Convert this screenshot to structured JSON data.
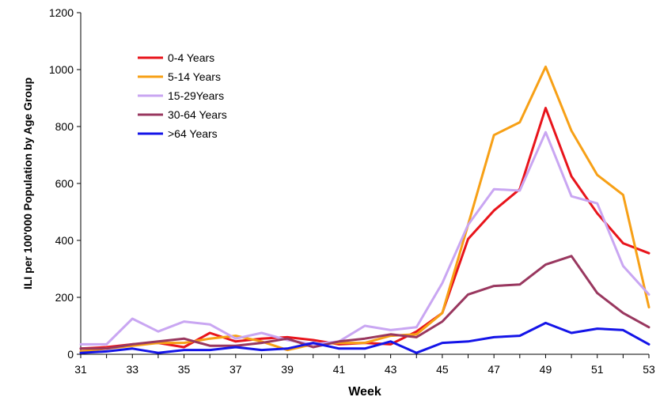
{
  "chart_data": {
    "type": "line",
    "xlabel": "Week",
    "ylabel": "ILI per 100'000 Population by Age Group",
    "xlim": [
      31,
      53
    ],
    "ylim": [
      0,
      1200
    ],
    "x": [
      31,
      32,
      33,
      34,
      35,
      36,
      37,
      38,
      39,
      40,
      41,
      42,
      43,
      44,
      45,
      46,
      47,
      48,
      49,
      50,
      51,
      52,
      53
    ],
    "x_ticks": [
      "31",
      "33",
      "35",
      "37",
      "39",
      "41",
      "43",
      "45",
      "47",
      "49",
      "51",
      "53"
    ],
    "y_ticks": [
      "0",
      "200",
      "400",
      "600",
      "800",
      "1000",
      "1200"
    ],
    "grid": false,
    "legend": "top-left",
    "series": [
      {
        "name": "0-4 Years",
        "color": "#e8141b",
        "values": [
          20,
          25,
          35,
          40,
          25,
          75,
          45,
          55,
          60,
          50,
          35,
          40,
          35,
          80,
          145,
          405,
          505,
          580,
          865,
          625,
          495,
          390,
          355
        ]
      },
      {
        "name": "5-14 Years",
        "color": "#f7a016",
        "values": [
          10,
          20,
          30,
          40,
          40,
          55,
          65,
          45,
          15,
          35,
          40,
          40,
          65,
          70,
          145,
          455,
          770,
          815,
          1010,
          785,
          630,
          560,
          165
        ]
      },
      {
        "name": "15-29Years",
        "color": "#c9a6f2",
        "values": [
          35,
          35,
          125,
          80,
          115,
          105,
          55,
          75,
          50,
          35,
          45,
          100,
          85,
          95,
          250,
          455,
          580,
          575,
          780,
          555,
          530,
          310,
          210
        ]
      },
      {
        "name": "30-64 Years",
        "color": "#99375f",
        "values": [
          20,
          20,
          35,
          45,
          55,
          30,
          30,
          40,
          55,
          25,
          45,
          55,
          70,
          60,
          115,
          210,
          240,
          245,
          315,
          345,
          215,
          145,
          95
        ]
      },
      {
        "name": ">64 Years",
        "color": "#1414e8",
        "values": [
          5,
          10,
          20,
          5,
          15,
          15,
          25,
          15,
          20,
          40,
          20,
          20,
          45,
          5,
          40,
          45,
          60,
          65,
          110,
          75,
          90,
          85,
          35
        ]
      }
    ]
  }
}
